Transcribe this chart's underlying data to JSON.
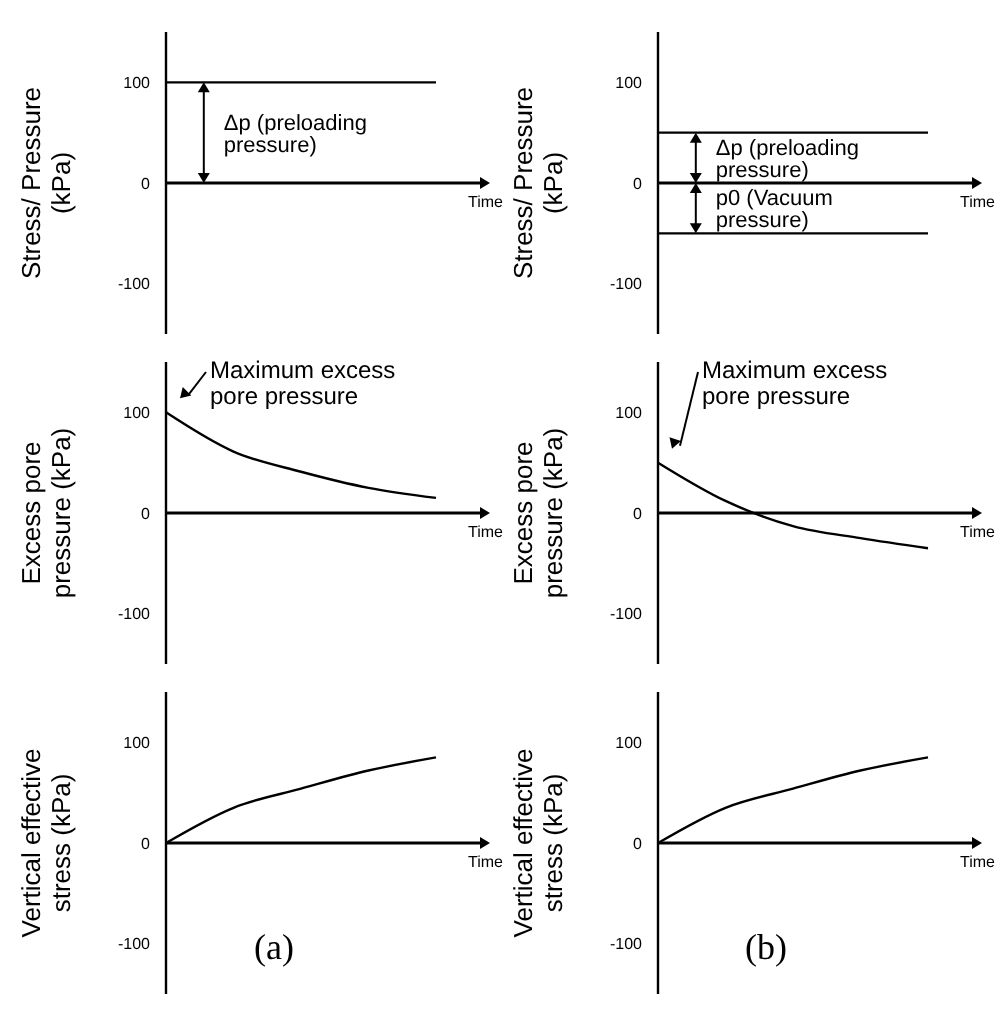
{
  "chart_data": [
    {
      "type": "line",
      "ylabel": "Stress/ Pressure (kPa)",
      "xlabel": "Time",
      "categories": [
        null,
        null,
        null,
        null,
        null
      ],
      "tick_labels": "y",
      "ylim": [
        -150,
        150
      ],
      "yticks": [
        -100,
        0,
        100
      ],
      "annotations": [
        "Δp (preloading pressure)"
      ],
      "series": [
        {
          "color": "#000000",
          "values": [
            100,
            100,
            100,
            100,
            100
          ]
        }
      ]
    },
    {
      "type": "line",
      "ylabel": "Stress/ Pressure (kPa)",
      "xlabel": "Time",
      "categories": [
        null,
        null,
        null,
        null,
        null
      ],
      "tick_labels": "y",
      "ylim": [
        -150,
        150
      ],
      "yticks": [
        -100,
        0,
        100
      ],
      "annotations": [
        "Δp (preloading pressure)",
        "p0 (Vacuum pressure)"
      ],
      "series": [
        {
          "color": "#000000",
          "values": [
            50,
            50,
            50,
            50,
            50
          ]
        },
        {
          "color": "#000000",
          "values": [
            -50,
            -50,
            -50,
            -50,
            -50
          ]
        }
      ]
    },
    {
      "type": "line",
      "ylabel": "Excess pore pressure (kPa)",
      "xlabel": "Time",
      "categories": [
        null,
        null,
        null,
        null,
        null
      ],
      "tick_labels": "y",
      "ylim": [
        -150,
        150
      ],
      "yticks": [
        -100,
        0,
        100
      ],
      "annotations": [
        "Maximum excess pore pressure"
      ],
      "series": [
        {
          "color": "#000000",
          "values": [
            100,
            61,
            41,
            25,
            15
          ]
        }
      ]
    },
    {
      "type": "line",
      "ylabel": "Excess pore pressure (kPa)",
      "xlabel": "Time",
      "categories": [
        null,
        null,
        null,
        null,
        null
      ],
      "tick_labels": "y",
      "ylim": [
        -150,
        150
      ],
      "yticks": [
        -100,
        0,
        100
      ],
      "annotations": [
        "Maximum excess pore pressure"
      ],
      "series": [
        {
          "color": "#000000",
          "values": [
            50,
            12,
            -13,
            -25,
            -35
          ]
        }
      ]
    },
    {
      "type": "line",
      "ylabel": "Vertical effective stress (kPa)",
      "xlabel": "Time",
      "categories": [
        null,
        null,
        null,
        null,
        null
      ],
      "tick_labels": "y",
      "ylim": [
        -150,
        150
      ],
      "yticks": [
        -100,
        0,
        100
      ],
      "annotations": [
        "(a)"
      ],
      "series": [
        {
          "color": "#000000",
          "values": [
            0,
            35,
            54,
            72,
            85
          ]
        }
      ]
    },
    {
      "type": "line",
      "ylabel": "Vertical effective stress (kPa)",
      "xlabel": "Time",
      "categories": [
        null,
        null,
        null,
        null,
        null
      ],
      "tick_labels": "y",
      "ylim": [
        -150,
        150
      ],
      "yticks": [
        -100,
        0,
        100
      ],
      "annotations": [
        "(b)"
      ],
      "series": [
        {
          "color": "#000000",
          "values": [
            0,
            35,
            54,
            72,
            85
          ]
        }
      ]
    }
  ]
}
